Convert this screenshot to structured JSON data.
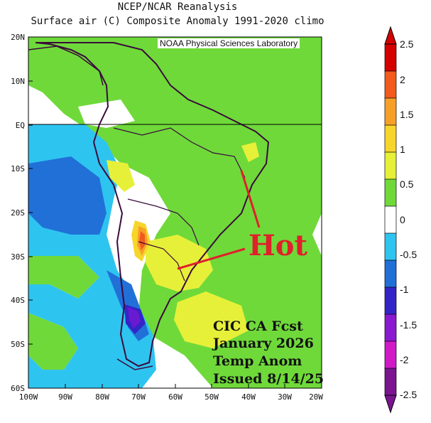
{
  "title": {
    "line1": "NCEP/NCAR Reanalysis",
    "line2": "Surface air (C) Composite Anomaly 1991-2020 climo"
  },
  "credit": "NOAA Physical Sciences Laboratory",
  "map": {
    "lat_labels": [
      "20N",
      "10N",
      "EQ",
      "10S",
      "20S",
      "30S",
      "40S",
      "50S",
      "60S"
    ],
    "lon_labels": [
      "100W",
      "90W",
      "80W",
      "70W",
      "60W",
      "50W",
      "40W",
      "30W",
      "20W"
    ],
    "region": "South America",
    "colors": {
      "land_border": "#3a0a3a",
      "equator_line": "#000000",
      "annotation": "#e0202a"
    }
  },
  "annotation": {
    "hot_label": "Hot",
    "forecast_lines": [
      "CIC CA Fcst",
      "January 2026",
      "Temp Anom",
      "Issued 8/14/25"
    ]
  },
  "colorbar": {
    "labels": [
      "2.5",
      "2",
      "1.5",
      "1",
      "0.5",
      "0",
      "-0.5",
      "-1",
      "-1.5",
      "-2",
      "-2.5"
    ],
    "colors": [
      "#d40000",
      "#f25a1e",
      "#f7a028",
      "#f7d52a",
      "#e7f038",
      "#6fd93a",
      "#ffffff",
      "#2ec4f0",
      "#2070d8",
      "#3424c8",
      "#8a1ad0",
      "#d01ac8",
      "#7a1490"
    ]
  }
}
